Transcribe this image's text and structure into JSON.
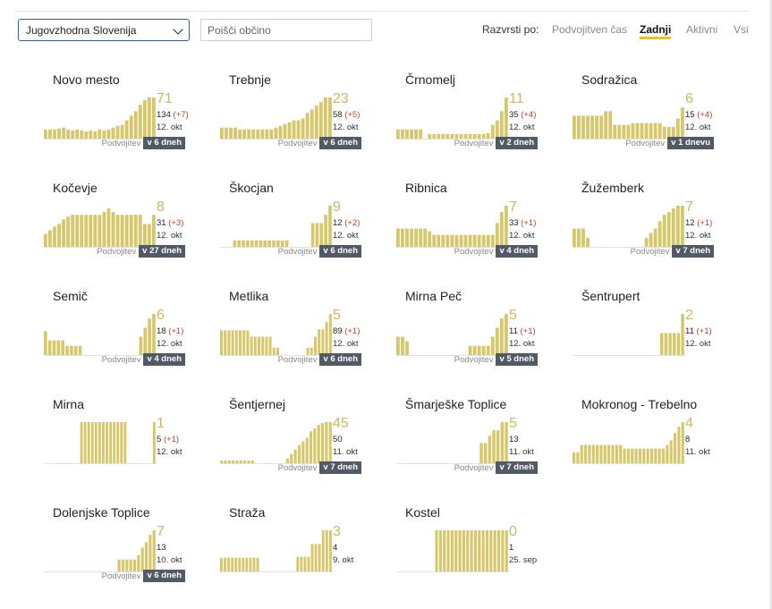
{
  "region_select": {
    "value": "Jugovzhodna Slovenija"
  },
  "search": {
    "placeholder": "Poišči občino"
  },
  "sort": {
    "label": "Razvrsti po:",
    "options": [
      {
        "label": "Podvojitven čas",
        "active": false
      },
      {
        "label": "Zadnji",
        "active": true
      },
      {
        "label": "Aktivni",
        "active": false
      },
      {
        "label": "Vsi",
        "active": false
      }
    ]
  },
  "colors": {
    "bar": "#d7c76b",
    "number": "#cdb85d",
    "delta": "#b5422d",
    "badge": "#525a66",
    "sort_underline": "#e8c51c"
  },
  "doubling_label": "Podvojitev",
  "municipalities": [
    {
      "name": "Novo mesto",
      "value": "71",
      "count": "134",
      "delta": "(+7)",
      "date": "12. okt",
      "badge": "v 6 dneh",
      "chart_data": {
        "type": "bar",
        "values": [
          10,
          10,
          10,
          11,
          12,
          10,
          9,
          10,
          9,
          8,
          9,
          8,
          10,
          9,
          10,
          12,
          14,
          15,
          20,
          25,
          30,
          37,
          42,
          45,
          45
        ]
      }
    },
    {
      "name": "Trebnje",
      "value": "23",
      "count": "58",
      "delta": "(+5)",
      "date": "12. okt",
      "badge": "v 6 dneh",
      "chart_data": {
        "type": "bar",
        "values": [
          12,
          12,
          12,
          12,
          10,
          10,
          10,
          10,
          10,
          10,
          10,
          10,
          12,
          14,
          16,
          18,
          20,
          20,
          22,
          28,
          32,
          36,
          40,
          45,
          45
        ]
      }
    },
    {
      "name": "Črnomelj",
      "value": "11",
      "count": "35",
      "delta": "(+4)",
      "date": "12. okt",
      "badge": "v 2 dneh",
      "chart_data": {
        "type": "bar",
        "values": [
          10,
          10,
          10,
          10,
          10,
          10,
          0,
          5,
          5,
          5,
          5,
          5,
          5,
          5,
          5,
          5,
          5,
          5,
          5,
          5,
          6,
          15,
          20,
          30,
          45
        ]
      }
    },
    {
      "name": "Sodražica",
      "value": "6",
      "count": "15",
      "delta": "(+4)",
      "date": "12. okt",
      "badge": "v 1 dnevu",
      "chart_data": {
        "type": "bar",
        "values": [
          25,
          25,
          25,
          25,
          25,
          25,
          25,
          30,
          30,
          15,
          15,
          15,
          15,
          17,
          17,
          17,
          17,
          17,
          17,
          17,
          13,
          13,
          13,
          22,
          34
        ]
      }
    },
    {
      "name": "Kočevje",
      "value": "8",
      "count": "31",
      "delta": "(+3)",
      "date": "12. okt",
      "badge": "v 27 dneh",
      "chart_data": {
        "type": "bar",
        "values": [
          14,
          18,
          22,
          25,
          30,
          33,
          35,
          35,
          35,
          35,
          35,
          35,
          35,
          38,
          42,
          38,
          35,
          35,
          35,
          35,
          35,
          35,
          25,
          25,
          35
        ]
      }
    },
    {
      "name": "Škocjan",
      "value": "9",
      "count": "12",
      "delta": "(+2)",
      "date": "12. okt",
      "badge": "v 6 dneh",
      "chart_data": {
        "type": "bar",
        "values": [
          0,
          0,
          0,
          7,
          7,
          7,
          7,
          7,
          7,
          7,
          7,
          7,
          7,
          7,
          7,
          7,
          0,
          0,
          0,
          0,
          0,
          26,
          26,
          26,
          35,
          45
        ]
      }
    },
    {
      "name": "Ribnica",
      "value": "7",
      "count": "33",
      "delta": "(+1)",
      "date": "12. okt",
      "badge": "v 4 dneh",
      "chart_data": {
        "type": "bar",
        "values": [
          20,
          20,
          20,
          20,
          20,
          20,
          20,
          17,
          13,
          13,
          13,
          13,
          13,
          13,
          13,
          13,
          13,
          13,
          13,
          13,
          13,
          13,
          26,
          38,
          45
        ]
      }
    },
    {
      "name": "Žužemberk",
      "value": "7",
      "count": "12",
      "delta": "(+1)",
      "date": "12. okt",
      "badge": "v 7 dneh",
      "chart_data": {
        "type": "bar",
        "values": [
          20,
          20,
          20,
          10,
          0,
          0,
          0,
          0,
          0,
          0,
          0,
          0,
          0,
          0,
          0,
          0,
          10,
          15,
          20,
          28,
          35,
          38,
          42,
          45,
          45
        ]
      }
    },
    {
      "name": "Semič",
      "value": "6",
      "count": "18",
      "delta": "(+1)",
      "date": "12. okt",
      "badge": "v 4 dneh",
      "chart_data": {
        "type": "bar",
        "values": [
          26,
          16,
          16,
          16,
          16,
          10,
          10,
          10,
          10,
          0,
          0,
          0,
          0,
          0,
          0,
          0,
          0,
          0,
          0,
          0,
          0,
          0,
          20,
          30,
          40,
          45
        ]
      }
    },
    {
      "name": "Metlika",
      "value": "5",
      "count": "89",
      "delta": "(+1)",
      "date": "12. okt",
      "badge": "v 6 dneh",
      "chart_data": {
        "type": "bar",
        "values": [
          27,
          27,
          27,
          27,
          27,
          27,
          27,
          27,
          20,
          20,
          20,
          20,
          20,
          20,
          8,
          8,
          0,
          0,
          0,
          0,
          0,
          0,
          0,
          8,
          8,
          20,
          28,
          28,
          36,
          45
        ]
      }
    },
    {
      "name": "Mirna Peč",
      "value": "5",
      "count": "11",
      "delta": "(+1)",
      "date": "12. okt",
      "badge": "v 5 dneh",
      "chart_data": {
        "type": "bar",
        "values": [
          20,
          20,
          15,
          0,
          0,
          0,
          0,
          0,
          0,
          0,
          0,
          0,
          0,
          0,
          0,
          0,
          10,
          10,
          10,
          10,
          10,
          20,
          30,
          40,
          45
        ]
      }
    },
    {
      "name": "Šentrupert",
      "value": "2",
      "count": "11",
      "delta": "(+1)",
      "date": "12. okt",
      "badge": "",
      "chart_data": {
        "type": "bar",
        "values": [
          0,
          0,
          0,
          0,
          0,
          0,
          0,
          0,
          0,
          0,
          0,
          0,
          0,
          0,
          0,
          0,
          0,
          0,
          0,
          0,
          0,
          24,
          24,
          24,
          24,
          24,
          45
        ]
      }
    },
    {
      "name": "Mirna",
      "value": "1",
      "count": "5",
      "delta": "(+1)",
      "date": "12. okt",
      "badge": "",
      "chart_data": {
        "type": "bar",
        "values": [
          0,
          0,
          0,
          0,
          0,
          0,
          0,
          0,
          0,
          0,
          45,
          45,
          45,
          45,
          45,
          45,
          45,
          45,
          45,
          45,
          45,
          45,
          45,
          0,
          0,
          0,
          0,
          0,
          0,
          0,
          45
        ]
      }
    },
    {
      "name": "Šentjernej",
      "value": "45",
      "count": "50",
      "delta": "",
      "date": "11. okt",
      "badge": "v 7 dneh",
      "chart_data": {
        "type": "bar",
        "values": [
          3,
          3,
          3,
          3,
          3,
          3,
          3,
          3,
          3,
          0,
          0,
          0,
          0,
          0,
          0,
          0,
          0,
          5,
          10,
          15,
          20,
          24,
          28,
          35,
          38,
          42,
          44,
          45,
          45
        ]
      }
    },
    {
      "name": "Šmarješke Toplice",
      "value": "5",
      "count": "13",
      "delta": "",
      "date": "11. okt",
      "badge": "v 7 dneh",
      "chart_data": {
        "type": "bar",
        "values": [
          0,
          0,
          0,
          0,
          0,
          0,
          0,
          0,
          0,
          0,
          0,
          0,
          0,
          0,
          0,
          0,
          0,
          0,
          0,
          0,
          22,
          22,
          30,
          36,
          36,
          45,
          45
        ]
      }
    },
    {
      "name": "Mokronog - Trebelno",
      "value": "4",
      "count": "8",
      "delta": "",
      "date": "11. okt",
      "badge": "",
      "chart_data": {
        "type": "bar",
        "values": [
          12,
          12,
          20,
          20,
          20,
          20,
          20,
          20,
          20,
          20,
          20,
          20,
          20,
          16,
          16,
          16,
          16,
          16,
          16,
          16,
          16,
          16,
          16,
          16,
          20,
          25,
          33,
          40,
          45
        ]
      }
    },
    {
      "name": "Dolenjske Toplice",
      "value": "7",
      "count": "13",
      "delta": "",
      "date": "10. okt",
      "badge": "v 6 dneh",
      "chart_data": {
        "type": "bar",
        "values": [
          0,
          0,
          0,
          0,
          0,
          0,
          0,
          0,
          0,
          0,
          0,
          0,
          0,
          0,
          0,
          0,
          0,
          0,
          0,
          13,
          13,
          13,
          13,
          13,
          18,
          26,
          32,
          40,
          45
        ]
      }
    },
    {
      "name": "Straža",
      "value": "3",
      "count": "4",
      "delta": "",
      "date": "9. okt",
      "badge": "",
      "chart_data": {
        "type": "bar",
        "values": [
          15,
          15,
          15,
          15,
          15,
          15,
          15,
          15,
          15,
          15,
          15,
          0,
          0,
          0,
          0,
          0,
          0,
          0,
          0,
          0,
          0,
          16,
          16,
          16,
          16,
          30,
          30,
          30,
          45,
          45,
          45
        ]
      }
    },
    {
      "name": "Kostel",
      "value": "0",
      "count": "1",
      "delta": "",
      "date": "25. sep",
      "badge": "",
      "chart_data": {
        "type": "bar",
        "values": [
          0,
          0,
          0,
          0,
          0,
          0,
          0,
          0,
          0,
          0,
          45,
          45,
          45,
          45,
          45,
          45,
          45,
          45,
          45,
          45,
          45,
          45,
          45,
          45,
          45,
          45,
          45,
          45,
          45
        ]
      }
    }
  ]
}
